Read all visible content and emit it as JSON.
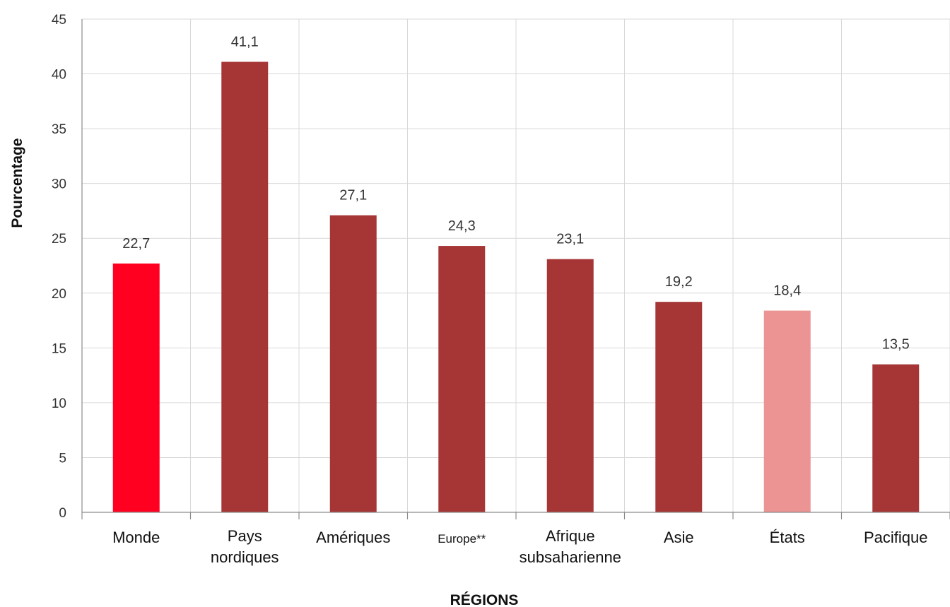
{
  "chart_data": {
    "type": "bar",
    "title": "",
    "xlabel": "RÉGIONS",
    "ylabel": "Pourcentage",
    "ylim": [
      0,
      45
    ],
    "yticks": [
      0,
      5,
      10,
      15,
      20,
      25,
      30,
      35,
      40,
      45
    ],
    "grid": true,
    "legend": "none",
    "categories": [
      [
        "Monde"
      ],
      [
        "Pays",
        "nordiques"
      ],
      [
        "Amériques"
      ],
      [
        "Europe**"
      ],
      [
        "Afrique",
        "subsaharienne"
      ],
      [
        "Asie"
      ],
      [
        "États"
      ],
      [
        "Pacifique"
      ]
    ],
    "values": [
      22.7,
      41.1,
      27.1,
      24.3,
      23.1,
      19.2,
      18.4,
      13.5
    ],
    "value_labels": [
      "22,7",
      "41,1",
      "27,1",
      "24,3",
      "23,1",
      "19,2",
      "18,4",
      "13,5"
    ],
    "colors": [
      "#ff0020",
      "#a63535",
      "#a63535",
      "#a63535",
      "#a63535",
      "#a63535",
      "#ec9393",
      "#a63535"
    ]
  }
}
